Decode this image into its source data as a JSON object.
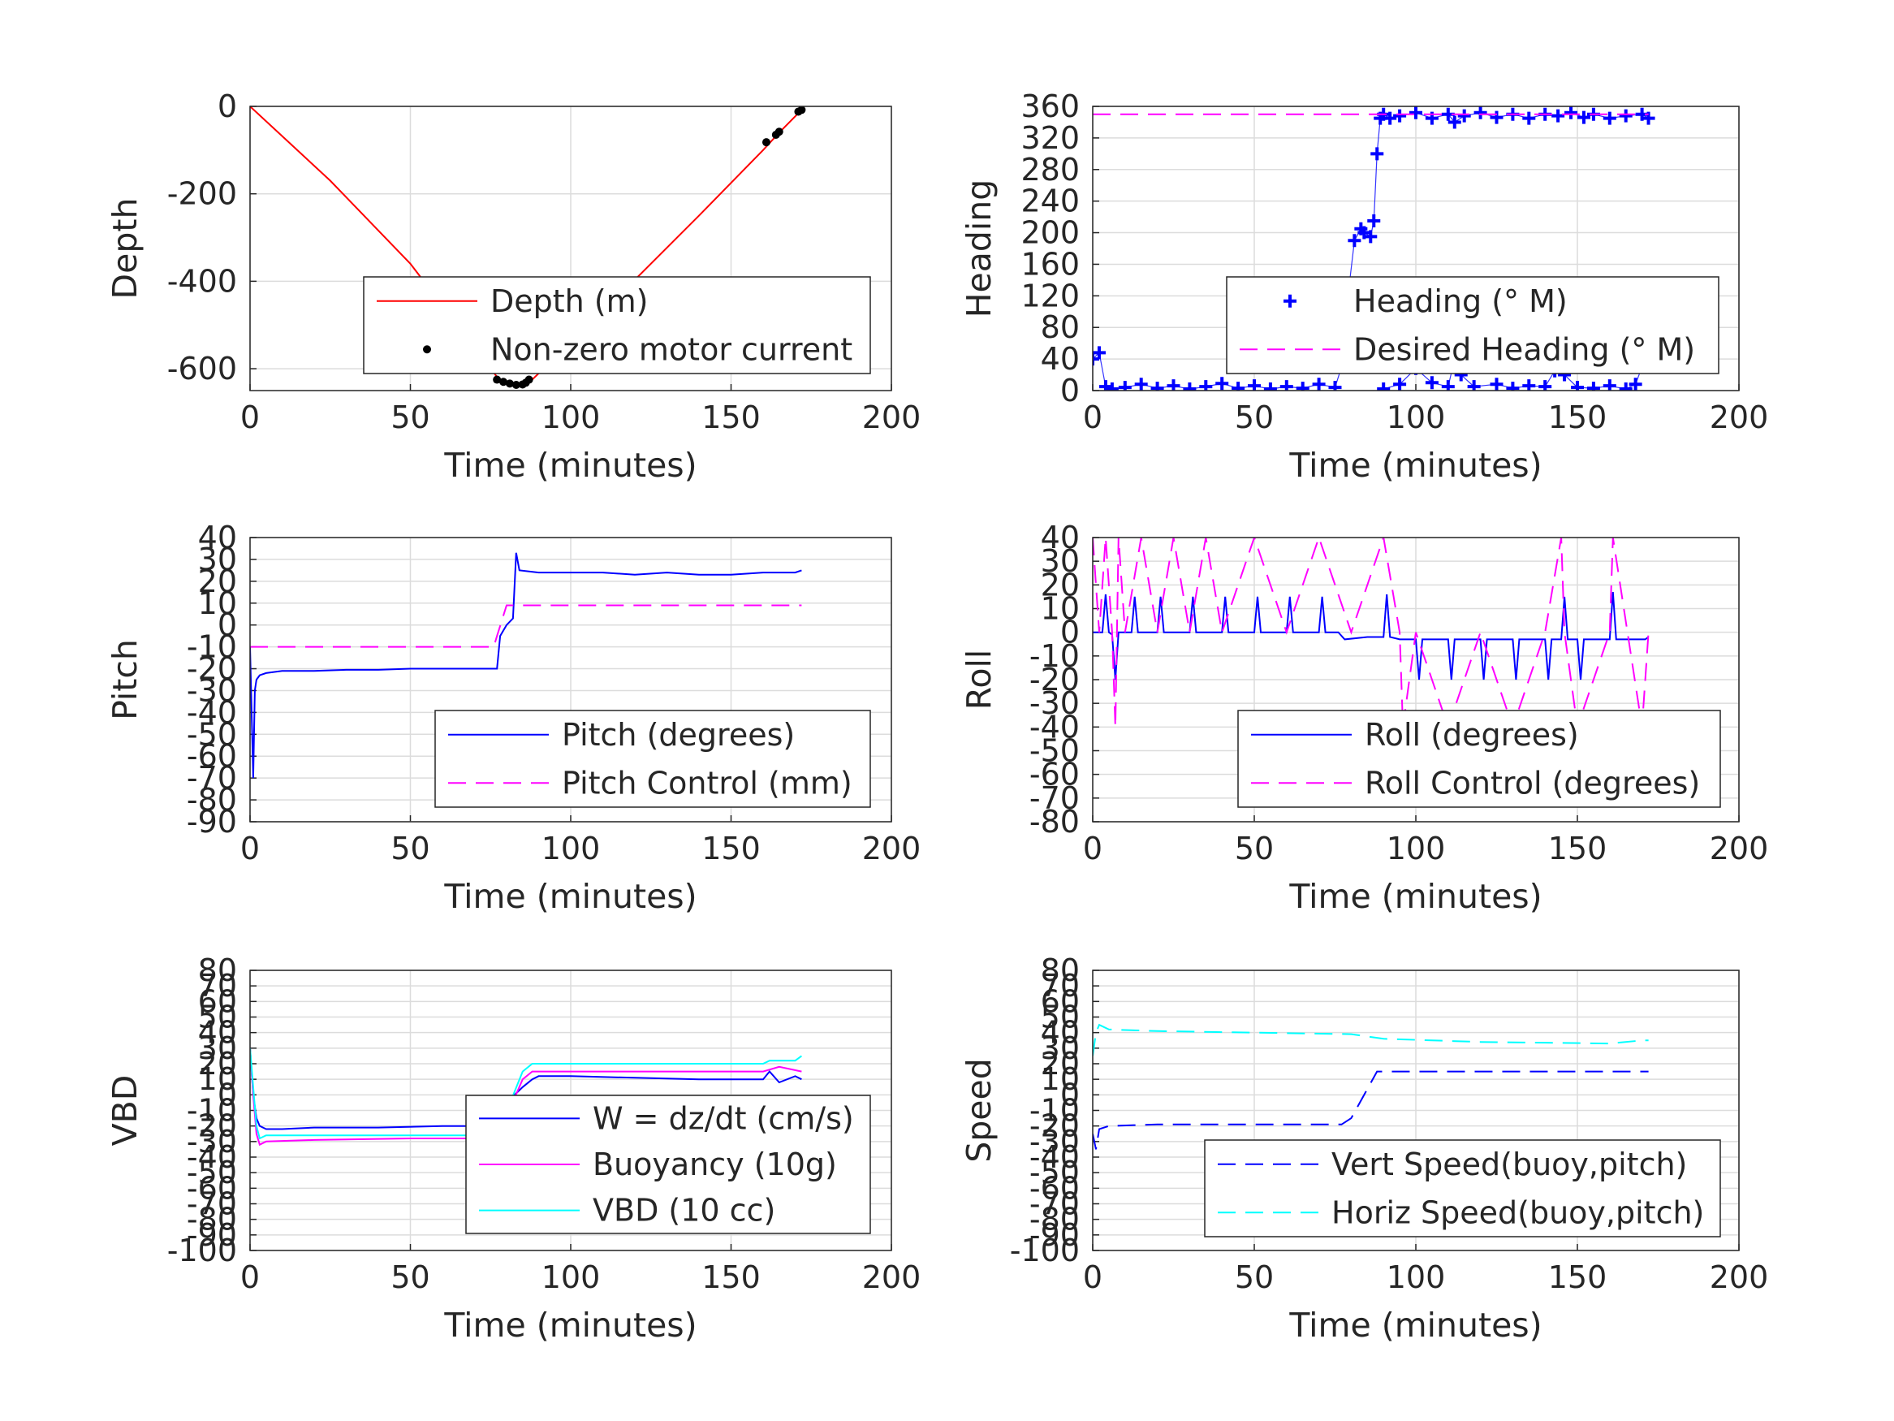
{
  "chart_data": [
    {
      "type": "line",
      "xlabel": "Time (minutes)",
      "ylabel": "Depth",
      "xlim": [
        0,
        200
      ],
      "ylim": [
        -650,
        0
      ],
      "xticks": [
        "0",
        "50",
        "100",
        "150",
        "200"
      ],
      "yticks": [
        "0",
        "-200",
        "-400",
        "-600"
      ],
      "ytick_values": [
        0,
        -200,
        -400,
        -600
      ],
      "grid": true,
      "legend_position": "bottom-right",
      "series": [
        {
          "name": "Depth (m)",
          "style": "line",
          "color": "#ff0000",
          "x": [
            0,
            25,
            50,
            78,
            82,
            85,
            88,
            110,
            140,
            160,
            165,
            172
          ],
          "y": [
            0,
            -170,
            -360,
            -628,
            -636,
            -638,
            -625,
            -470,
            -250,
            -100,
            -60,
            -8
          ]
        },
        {
          "name": "Non-zero motor current",
          "style": "dots",
          "color": "#000000",
          "x": [
            77,
            79,
            81,
            83,
            85,
            86,
            87,
            161,
            164,
            165,
            171,
            172
          ],
          "y": [
            -625,
            -630,
            -634,
            -637,
            -636,
            -632,
            -625,
            -82,
            -65,
            -58,
            -12,
            -8
          ]
        }
      ]
    },
    {
      "type": "line",
      "xlabel": "Time (minutes)",
      "ylabel": "Heading",
      "xlim": [
        0,
        200
      ],
      "ylim": [
        0,
        360
      ],
      "xticks": [
        "0",
        "50",
        "100",
        "150",
        "200"
      ],
      "yticks": [
        "0",
        "40",
        "80",
        "120",
        "160",
        "200",
        "240",
        "280",
        "320",
        "360"
      ],
      "ytick_values": [
        0,
        40,
        80,
        120,
        160,
        200,
        240,
        280,
        320,
        360
      ],
      "grid": true,
      "legend_position": "bottom-right",
      "series": [
        {
          "name": "Heading (° M)",
          "style": "plus",
          "color": "#0000ff",
          "x": [
            0,
            2,
            4,
            6,
            10,
            15,
            20,
            25,
            30,
            35,
            40,
            45,
            50,
            55,
            60,
            65,
            70,
            75,
            77,
            79,
            81,
            83,
            84,
            86,
            87,
            88,
            89,
            90,
            92,
            95,
            100,
            105,
            110,
            112,
            115,
            120,
            125,
            130,
            135,
            140,
            144,
            148,
            152,
            155,
            160,
            165,
            170,
            172
          ],
          "y": [
            40,
            48,
            5,
            2,
            4,
            8,
            3,
            6,
            2,
            5,
            9,
            3,
            6,
            2,
            5,
            3,
            8,
            4,
            30,
            120,
            190,
            205,
            200,
            195,
            215,
            300,
            345,
            350,
            345,
            348,
            352,
            345,
            350,
            340,
            348,
            352,
            346,
            350,
            345,
            350,
            348,
            352,
            346,
            350,
            345,
            348,
            350,
            345
          ]
        },
        {
          "name": "Heading (° M)",
          "style": "plus",
          "color": "#0000ff",
          "x": [
            90,
            95,
            100,
            105,
            110,
            112,
            114,
            118,
            125,
            130,
            135,
            140,
            143,
            146,
            150,
            155,
            160,
            165,
            168,
            170,
            171,
            172
          ],
          "y": [
            2,
            8,
            28,
            10,
            5,
            40,
            20,
            5,
            8,
            3,
            6,
            5,
            25,
            20,
            4,
            3,
            6,
            2,
            8,
            30,
            70,
            105
          ]
        },
        {
          "name": "Desired Heading (° M)",
          "style": "dashed",
          "color": "#ff00ff",
          "x": [
            0,
            80,
            90,
            172
          ],
          "y": [
            350,
            350,
            350,
            350
          ]
        }
      ]
    },
    {
      "type": "line",
      "xlabel": "Time (minutes)",
      "ylabel": "Pitch",
      "xlim": [
        0,
        200
      ],
      "ylim": [
        -90,
        40
      ],
      "xticks": [
        "0",
        "50",
        "100",
        "150",
        "200"
      ],
      "yticks": [
        "40",
        "30",
        "20",
        "10",
        "0",
        "-10",
        "-20",
        "-30",
        "-40",
        "-50",
        "-60",
        "-70",
        "-80",
        "-90"
      ],
      "ytick_values": [
        40,
        30,
        20,
        10,
        0,
        -10,
        -20,
        -30,
        -40,
        -50,
        -60,
        -70,
        -80,
        -90
      ],
      "grid": true,
      "legend_position": "bottom-right",
      "series": [
        {
          "name": "Pitch (degrees)",
          "style": "line",
          "color": "#0000ff",
          "x": [
            0,
            1,
            1.5,
            2,
            3,
            5,
            10,
            20,
            30,
            40,
            50,
            60,
            70,
            77,
            78,
            80,
            82,
            83,
            84,
            90,
            100,
            110,
            120,
            130,
            140,
            150,
            160,
            170,
            172
          ],
          "y": [
            -10,
            -70,
            -30,
            -25,
            -23,
            -22,
            -21,
            -21,
            -20.5,
            -20.5,
            -20,
            -20,
            -20,
            -20,
            -5,
            0,
            3,
            33,
            25,
            24,
            24,
            24,
            23,
            24,
            23,
            23,
            24,
            24,
            25
          ]
        },
        {
          "name": "Pitch Control (mm)",
          "style": "dashed",
          "color": "#ff00ff",
          "x": [
            0,
            76,
            77,
            80,
            172
          ],
          "y": [
            -10,
            -10,
            -5,
            9,
            9
          ]
        }
      ]
    },
    {
      "type": "line",
      "xlabel": "Time (minutes)",
      "ylabel": "Roll",
      "xlim": [
        0,
        200
      ],
      "ylim": [
        -80,
        40
      ],
      "xticks": [
        "0",
        "50",
        "100",
        "150",
        "200"
      ],
      "yticks": [
        "40",
        "30",
        "20",
        "10",
        "0",
        "-10",
        "-20",
        "-30",
        "-40",
        "-50",
        "-60",
        "-70",
        "-80"
      ],
      "ytick_values": [
        40,
        30,
        20,
        10,
        0,
        -10,
        -20,
        -30,
        -40,
        -50,
        -60,
        -70,
        -80
      ],
      "grid": true,
      "legend_position": "bottom-right",
      "series": [
        {
          "name": "Roll (degrees)",
          "style": "line",
          "color": "#0000ff",
          "x": [
            0,
            3,
            4,
            5,
            6,
            7,
            8,
            12,
            13,
            14,
            20,
            21,
            22,
            30,
            31,
            32,
            40,
            41,
            42,
            50,
            51,
            52,
            60,
            61,
            62,
            70,
            71,
            72,
            76,
            78,
            85,
            90,
            91,
            92,
            95,
            100,
            101,
            102,
            110,
            111,
            112,
            120,
            121,
            122,
            130,
            131,
            132,
            140,
            141,
            142,
            145,
            146,
            147,
            150,
            151,
            152,
            160,
            161,
            162,
            170,
            171,
            172
          ],
          "y": [
            0,
            0,
            16,
            0,
            -1,
            -20,
            0,
            0,
            15,
            0,
            0,
            15,
            0,
            0,
            15,
            0,
            0,
            15,
            0,
            0,
            15,
            0,
            0,
            15,
            0,
            0,
            15,
            0,
            0,
            -3,
            -2,
            -2,
            16,
            -2,
            -3,
            -3,
            -20,
            -3,
            -3,
            -20,
            -3,
            -3,
            -20,
            -3,
            -3,
            -20,
            -3,
            -3,
            -20,
            -3,
            -3,
            15,
            -3,
            -3,
            -20,
            -3,
            -3,
            17,
            -3,
            -3,
            -3,
            -2
          ]
        },
        {
          "name": "Roll Control (degrees)",
          "style": "dashed",
          "color": "#ff00ff",
          "x": [
            0,
            2,
            4,
            6,
            7,
            8,
            10,
            15,
            20,
            25,
            30,
            35,
            40,
            50,
            60,
            70,
            80,
            90,
            95,
            96,
            100,
            110,
            120,
            130,
            140,
            145,
            146,
            150,
            160,
            161,
            170,
            172
          ],
          "y": [
            40,
            0,
            40,
            0,
            -40,
            40,
            0,
            40,
            0,
            40,
            0,
            40,
            0,
            40,
            0,
            40,
            0,
            40,
            0,
            -40,
            0,
            -40,
            0,
            -40,
            0,
            40,
            0,
            -40,
            0,
            40,
            -40,
            0
          ]
        }
      ]
    },
    {
      "type": "line",
      "xlabel": "Time (minutes)",
      "ylabel": "VBD",
      "xlim": [
        0,
        200
      ],
      "ylim": [
        -100,
        80
      ],
      "xticks": [
        "0",
        "50",
        "100",
        "150",
        "200"
      ],
      "yticks": [
        "80",
        "70",
        "60",
        "50",
        "40",
        "30",
        "20",
        "10",
        "0",
        "-10",
        "-20",
        "-30",
        "-40",
        "-50",
        "-60",
        "-70",
        "-80",
        "-90",
        "-100"
      ],
      "ytick_values": [
        80,
        70,
        60,
        50,
        40,
        30,
        20,
        10,
        0,
        -10,
        -20,
        -30,
        -40,
        -50,
        -60,
        -70,
        -80,
        -90,
        -100
      ],
      "grid": true,
      "legend_position": "bottom-right",
      "series": [
        {
          "name": "W = dz/dt (cm/s)",
          "style": "line",
          "color": "#0000ff",
          "x": [
            0,
            1,
            2,
            3,
            5,
            10,
            20,
            40,
            60,
            76,
            78,
            80,
            85,
            88,
            90,
            100,
            120,
            140,
            160,
            162,
            165,
            170,
            172
          ],
          "y": [
            30,
            0,
            -15,
            -20,
            -22,
            -22,
            -21,
            -21,
            -20,
            -20,
            -15,
            -5,
            5,
            10,
            12,
            12,
            11,
            10,
            10,
            15,
            8,
            12,
            10
          ]
        },
        {
          "name": "Buoyancy (10g)",
          "style": "line",
          "color": "#ff00ff",
          "x": [
            0,
            1,
            2,
            3,
            5,
            20,
            50,
            77,
            85,
            88,
            120,
            160,
            165,
            172
          ],
          "y": [
            30,
            0,
            -25,
            -32,
            -30,
            -29,
            -28,
            -28,
            10,
            15,
            15,
            15,
            18,
            15
          ]
        },
        {
          "name": "VBD (10 cc)",
          "style": "line",
          "color": "#00ffff",
          "x": [
            0,
            1,
            2,
            3,
            5,
            20,
            50,
            77,
            85,
            88,
            120,
            160,
            162,
            170,
            172
          ],
          "y": [
            30,
            5,
            -20,
            -28,
            -26,
            -26,
            -26,
            -26,
            15,
            20,
            20,
            20,
            22,
            22,
            25
          ]
        }
      ]
    },
    {
      "type": "line",
      "xlabel": "Time (minutes)",
      "ylabel": "Speed",
      "xlim": [
        0,
        200
      ],
      "ylim": [
        -100,
        80
      ],
      "xticks": [
        "0",
        "50",
        "100",
        "150",
        "200"
      ],
      "yticks": [
        "80",
        "70",
        "60",
        "50",
        "40",
        "30",
        "20",
        "10",
        "0",
        "-10",
        "-20",
        "-30",
        "-40",
        "-50",
        "-60",
        "-70",
        "-80",
        "-90",
        "-100"
      ],
      "ytick_values": [
        80,
        70,
        60,
        50,
        40,
        30,
        20,
        10,
        0,
        -10,
        -20,
        -30,
        -40,
        -50,
        -60,
        -70,
        -80,
        -90,
        -100
      ],
      "grid": true,
      "legend_position": "bottom-right",
      "series": [
        {
          "name": "Vert Speed(buoy,pitch)",
          "style": "dashed",
          "color": "#0000ff",
          "x": [
            0,
            1,
            2,
            5,
            20,
            50,
            77,
            80,
            88,
            90,
            100,
            120,
            140,
            160,
            172
          ],
          "y": [
            -25,
            -35,
            -22,
            -20,
            -19,
            -19,
            -19,
            -15,
            15,
            15,
            15,
            15,
            15,
            15,
            15
          ]
        },
        {
          "name": "Horiz Speed(buoy,pitch)",
          "style": "dashed",
          "color": "#00ffff",
          "x": [
            0,
            1,
            2,
            5,
            20,
            50,
            80,
            90,
            120,
            160,
            170,
            172
          ],
          "y": [
            25,
            40,
            45,
            42,
            41,
            40,
            39,
            36,
            34,
            33,
            35,
            35
          ]
        }
      ]
    }
  ]
}
